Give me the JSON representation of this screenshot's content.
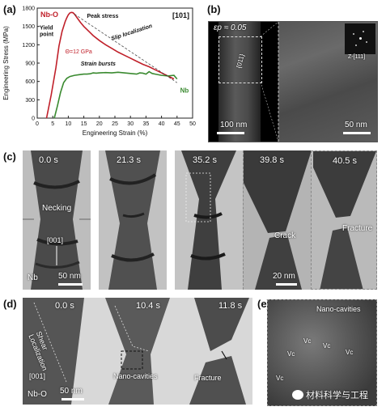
{
  "figure": {
    "panels": {
      "a": {
        "label": "(a)",
        "material": "Nb-O",
        "orientation": "[101]",
        "annotations": {
          "peak_stress": "Peak stress",
          "yield_point": "Yield\npoint",
          "theta": "Θ=12 GPa",
          "slip_localization": "Slip localization",
          "strain_bursts": "Strain bursts",
          "nb": "Nb"
        },
        "chart_data": {
          "type": "line",
          "xlabel": "Engineering Strain (%)",
          "ylabel": "Engineering Stress (MPa)",
          "xlim": [
            0,
            50
          ],
          "ylim": [
            0,
            1800
          ],
          "xticks": [
            "0",
            "5",
            "10",
            "15",
            "20",
            "25",
            "30",
            "35",
            "40",
            "45",
            "50"
          ],
          "yticks": [
            "0",
            "300",
            "600",
            "900",
            "1200",
            "1500",
            "1800"
          ],
          "series": [
            {
              "name": "Nb-O",
              "color": "#c0202a",
              "x": [
                3.0,
                4.5,
                6,
                7,
                8,
                9,
                9.5,
                10,
                10.5,
                11,
                11.5,
                12,
                13,
                14,
                15,
                16,
                17,
                18,
                20,
                22,
                24,
                26,
                28,
                30,
                32,
                34,
                36,
                38,
                40,
                42,
                44
              ],
              "y": [
                0,
                380,
                820,
                1180,
                1420,
                1580,
                1640,
                1690,
                1720,
                1730,
                1725,
                1700,
                1630,
                1560,
                1500,
                1450,
                1400,
                1350,
                1270,
                1200,
                1140,
                1080,
                1030,
                980,
                930,
                880,
                840,
                790,
                740,
                690,
                640
              ]
            },
            {
              "name": "Nb",
              "color": "#3a8a30",
              "x": [
                5.5,
                6.5,
                7.5,
                8.5,
                9.5,
                10.5,
                12,
                13.5,
                15,
                16,
                17,
                18,
                19,
                20,
                22,
                24,
                26,
                27,
                28,
                30,
                32,
                33,
                34,
                35,
                36,
                37,
                38,
                40,
                42,
                44,
                45
              ],
              "y": [
                0,
                200,
                420,
                580,
                650,
                680,
                700,
                710,
                720,
                720,
                725,
                740,
                735,
                740,
                745,
                740,
                750,
                745,
                740,
                730,
                720,
                740,
                735,
                720,
                760,
                730,
                720,
                700,
                690,
                700,
                640
              ]
            }
          ]
        }
      },
      "b": {
        "label": "(b)",
        "strain_label": "εp ≈ 0.05",
        "direction": "{011}",
        "diffraction": "Z-[111]",
        "scale_left": "100 nm",
        "scale_right": "50 nm"
      },
      "c": {
        "label": "(c)",
        "times": [
          "0.0 s",
          "21.3 s",
          "35.2 s",
          "39.8 s",
          "40.5 s"
        ],
        "necking": "Necking",
        "direction": "[001]",
        "material": "Nb",
        "scale_left": "50 nm",
        "scale_right": "20 nm",
        "crack": "Crack",
        "fracture": "Fracture"
      },
      "d": {
        "label": "(d)",
        "times": [
          "0.0 s",
          "10.4 s",
          "11.8 s"
        ],
        "shear": "Shear Localization",
        "direction": "[001]",
        "material": "Nb-O",
        "scale": "50 nm",
        "nano_cavities": "Nano-cavities",
        "fracture": "Fracture"
      },
      "e": {
        "label": "(e)",
        "title": "Nano-cavities",
        "vacancies": [
          "Vc",
          "Vc",
          "Vc",
          "Vc",
          "Vc"
        ],
        "watermark": "材料科学与工程"
      }
    }
  }
}
